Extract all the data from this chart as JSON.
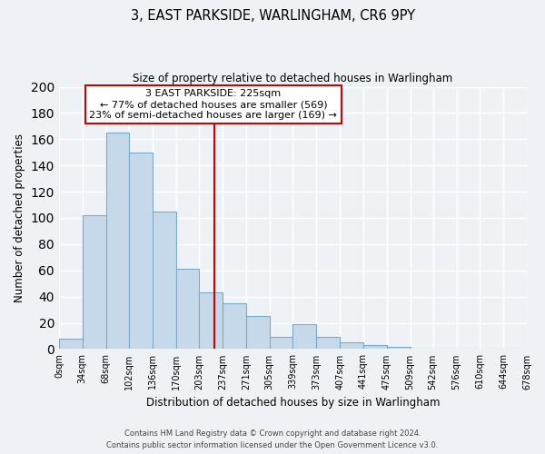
{
  "title": "3, EAST PARKSIDE, WARLINGHAM, CR6 9PY",
  "subtitle": "Size of property relative to detached houses in Warlingham",
  "xlabel": "Distribution of detached houses by size in Warlingham",
  "ylabel": "Number of detached properties",
  "bar_edges": [
    0,
    34,
    68,
    102,
    136,
    170,
    203,
    237,
    271,
    305,
    339,
    373,
    407,
    441,
    475,
    509,
    542,
    576,
    610,
    644,
    678
  ],
  "bar_heights": [
    8,
    102,
    165,
    150,
    105,
    61,
    43,
    35,
    25,
    9,
    19,
    9,
    5,
    3,
    2,
    0,
    0,
    0,
    0,
    0
  ],
  "bar_color": "#c6d9ea",
  "bar_edge_color": "#7aaac8",
  "tick_labels": [
    "0sqm",
    "34sqm",
    "68sqm",
    "102sqm",
    "136sqm",
    "170sqm",
    "203sqm",
    "237sqm",
    "271sqm",
    "305sqm",
    "339sqm",
    "373sqm",
    "407sqm",
    "441sqm",
    "475sqm",
    "509sqm",
    "542sqm",
    "576sqm",
    "610sqm",
    "644sqm",
    "678sqm"
  ],
  "ylim": [
    0,
    200
  ],
  "yticks": [
    0,
    20,
    40,
    60,
    80,
    100,
    120,
    140,
    160,
    180,
    200
  ],
  "vline_x": 225,
  "vline_color": "#cc0000",
  "annotation_title": "3 EAST PARKSIDE: 225sqm",
  "annotation_line1": "← 77% of detached houses are smaller (569)",
  "annotation_line2": "23% of semi-detached houses are larger (169) →",
  "annotation_box_color": "#ffffff",
  "annotation_box_edge": "#cc0000",
  "bg_color": "#eef2f7",
  "grid_color": "#ffffff",
  "footer1": "Contains HM Land Registry data © Crown copyright and database right 2024.",
  "footer2": "Contains public sector information licensed under the Open Government Licence v3.0."
}
